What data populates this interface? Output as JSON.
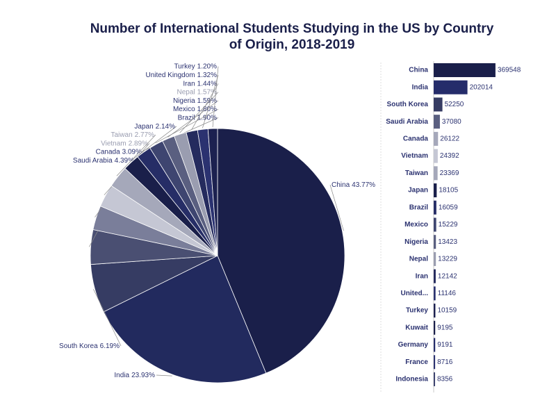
{
  "chart_data": [
    {
      "type": "pie",
      "title": "Number of International Students Studying in the US by Country of Origin, 2018-2019",
      "categories": [
        "China",
        "India",
        "South Korea",
        "Saudi Arabia",
        "Canada",
        "Vietnam",
        "Taiwan",
        "Japan",
        "Brazil",
        "Mexico",
        "Nigeria",
        "Nepal",
        "Iran",
        "United Kingdom",
        "Turkey"
      ],
      "values": [
        43.77,
        23.93,
        6.19,
        4.39,
        3.09,
        2.89,
        2.77,
        2.14,
        1.9,
        1.8,
        1.59,
        1.57,
        1.44,
        1.32,
        1.2
      ],
      "value_labels": [
        "43.77%",
        "23.93%",
        "6.19%",
        "4.39%",
        "3.09%",
        "2.89%",
        "2.77%",
        "2.14%",
        "1.90%",
        "1.80%",
        "1.59%",
        "1.57%",
        "1.44%",
        "1.32%",
        "1.20%"
      ],
      "colors": [
        "#1a1f4a",
        "#222a5e",
        "#363c63",
        "#4a4f72",
        "#7a7e9a",
        "#c5c7d4",
        "#a5a8ba",
        "#1a1f4a",
        "#262d66",
        "#3e4570",
        "#5a5f80",
        "#9a9db0",
        "#252b5e",
        "#2b3270",
        "#1c2150"
      ]
    },
    {
      "type": "hbar",
      "categories": [
        "China",
        "India",
        "South Korea",
        "Saudi Arabia",
        "Canada",
        "Vietnam",
        "Taiwan",
        "Japan",
        "Brazil",
        "Mexico",
        "Nigeria",
        "Nepal",
        "Iran",
        "United...",
        "Turkey",
        "Kuwait",
        "Germany",
        "France",
        "Indonesia"
      ],
      "values": [
        369548,
        202014,
        52250,
        37080,
        26122,
        24392,
        23369,
        18105,
        16059,
        15229,
        13423,
        13229,
        12142,
        11146,
        10159,
        9195,
        9191,
        8716,
        8356
      ],
      "colors": [
        "#1a1f4a",
        "#252c6a",
        "#363c63",
        "#5a5f80",
        "#a5a8ba",
        "#c5c7d4",
        "#a5a8ba",
        "#1a1f4a",
        "#262d66",
        "#3e4570",
        "#5a5f80",
        "#9a9db0",
        "#252b5e",
        "#2b3270",
        "#1c2150",
        "#1a1f4a",
        "#252c6a",
        "#2b3270",
        "#3e4570"
      ],
      "xlim": [
        0,
        370000
      ]
    }
  ]
}
